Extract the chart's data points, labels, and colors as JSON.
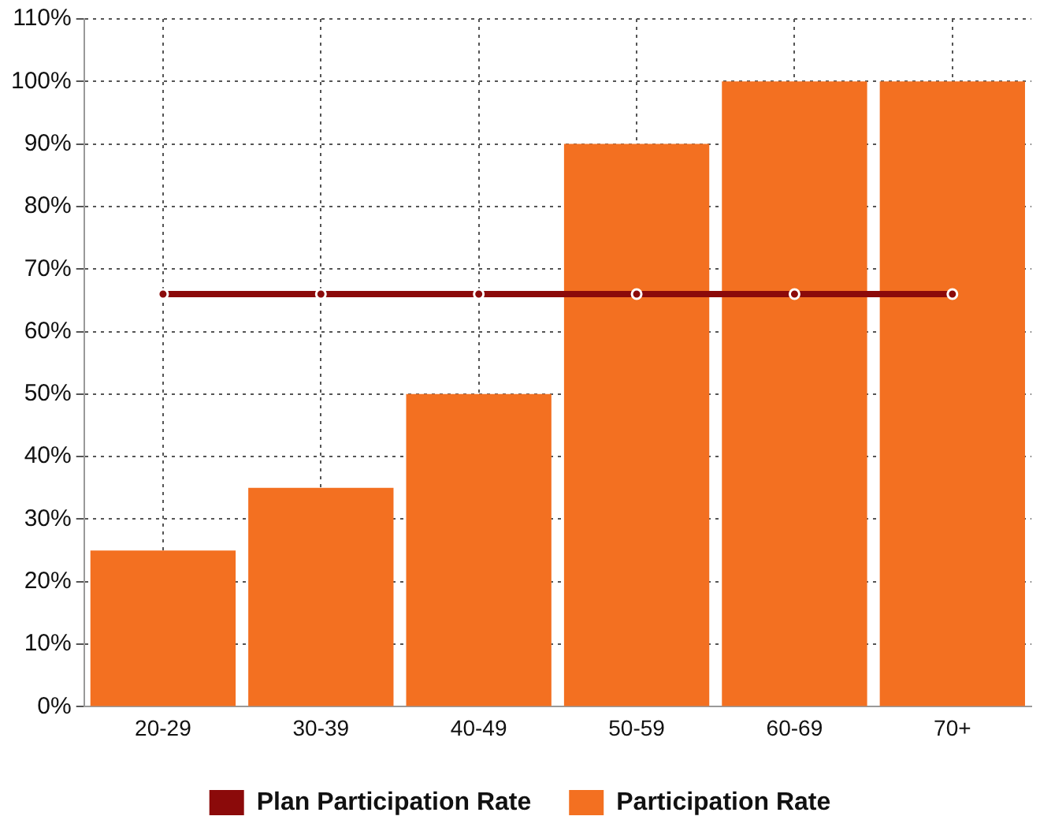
{
  "chart_data": {
    "type": "bar",
    "categories": [
      "20-29",
      "30-39",
      "40-49",
      "50-59",
      "60-69",
      "70+"
    ],
    "series": [
      {
        "name": "Plan Participation Rate",
        "type": "line",
        "color": "#8b0a0a",
        "values": [
          66,
          66,
          66,
          66,
          66,
          66
        ]
      },
      {
        "name": "Participation Rate",
        "color": "#f37021",
        "values": [
          25,
          35,
          50,
          90,
          100,
          100
        ]
      }
    ],
    "ylim": [
      0,
      110
    ],
    "yticks": [
      {
        "value": 0,
        "label": "0%"
      },
      {
        "value": 10,
        "label": "10%"
      },
      {
        "value": 20,
        "label": "20%"
      },
      {
        "value": 30,
        "label": "30%"
      },
      {
        "value": 40,
        "label": "40%"
      },
      {
        "value": 50,
        "label": "50%"
      },
      {
        "value": 60,
        "label": "60%"
      },
      {
        "value": 70,
        "label": "70%"
      },
      {
        "value": 80,
        "label": "80%"
      },
      {
        "value": 90,
        "label": "90%"
      },
      {
        "value": 100,
        "label": "100%"
      },
      {
        "value": 110,
        "label": "110%"
      }
    ],
    "grid": true,
    "legend": "bottom",
    "marker": "circle",
    "line_style": "solid"
  }
}
